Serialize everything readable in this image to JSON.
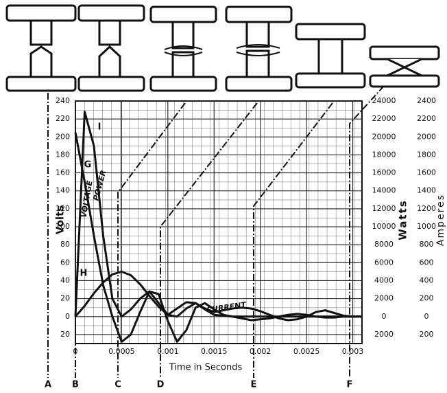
{
  "chart_data": {
    "type": "line",
    "x_label": "Time in Seconds",
    "y_label": "Volts",
    "y2_label": "Watts",
    "y3_label": "Amperes",
    "x": [
      0,
      0.0001,
      0.0002,
      0.0003,
      0.0004,
      0.0005,
      0.0006,
      0.0007,
      0.0008,
      0.0009,
      0.001,
      0.0011,
      0.0012,
      0.0013,
      0.0014,
      0.0015,
      0.0016,
      0.0017,
      0.0018,
      0.0019,
      0.002,
      0.0021,
      0.0022,
      0.0023,
      0.0024,
      0.0025,
      0.0026,
      0.0027,
      0.0028,
      0.0029,
      0.003,
      0.0031
    ],
    "series": [
      {
        "name": "VOLTAGE",
        "color": "#111111",
        "values": [
          205,
          150,
          90,
          35,
          0,
          -28,
          -20,
          5,
          28,
          25,
          -5,
          -28,
          -15,
          10,
          15,
          8,
          2,
          0,
          -2,
          -4,
          -3,
          -2,
          0,
          2,
          3,
          2,
          0,
          -1,
          -1,
          0,
          0,
          0
        ]
      },
      {
        "name": "POWER",
        "color": "#111111",
        "axis": "y2",
        "values": [
          0,
          22800,
          19000,
          9000,
          2000,
          0,
          800,
          2000,
          2800,
          1500,
          200,
          0,
          900,
          1500,
          800,
          200,
          100,
          0,
          0,
          0,
          0,
          0,
          0,
          0,
          0,
          0,
          0,
          0,
          0,
          0,
          0,
          0
        ]
      },
      {
        "name": "CURRENT",
        "color": "#111111",
        "axis": "y3",
        "values": [
          0,
          120,
          260,
          380,
          470,
          500,
          460,
          360,
          230,
          110,
          20,
          90,
          160,
          150,
          90,
          50,
          70,
          90,
          100,
          90,
          60,
          20,
          -20,
          -40,
          -30,
          0,
          50,
          70,
          40,
          10,
          0,
          0
        ]
      }
    ],
    "xlim": [
      0,
      0.0031
    ],
    "xticks": [
      0,
      0.0005,
      0.001,
      0.0015,
      0.002,
      0.0025,
      0.003
    ],
    "ylim": [
      -30,
      240
    ],
    "yticks": [
      {
        "value": -20,
        "label": "20"
      },
      0,
      20,
      40,
      60,
      80,
      100,
      120,
      140,
      160,
      180,
      200,
      220,
      240
    ],
    "y2lim": [
      -3000,
      24000
    ],
    "y2ticks": [
      {
        "value": -2000,
        "label": "2000"
      },
      0,
      2000,
      4000,
      6000,
      8000,
      10000,
      12000,
      14000,
      16000,
      18000,
      20000,
      22000,
      24000
    ],
    "y3lim": [
      -300,
      2400
    ],
    "y3ticks": [
      {
        "value": -200,
        "label": "200"
      },
      0,
      200,
      400,
      600,
      800,
      1000,
      1200,
      1400,
      1600,
      1800,
      2000,
      2200,
      2400
    ],
    "grid": true,
    "annotations": [
      "A",
      "B",
      "C",
      "D",
      "E",
      "F",
      "G",
      "H",
      "I"
    ]
  }
}
